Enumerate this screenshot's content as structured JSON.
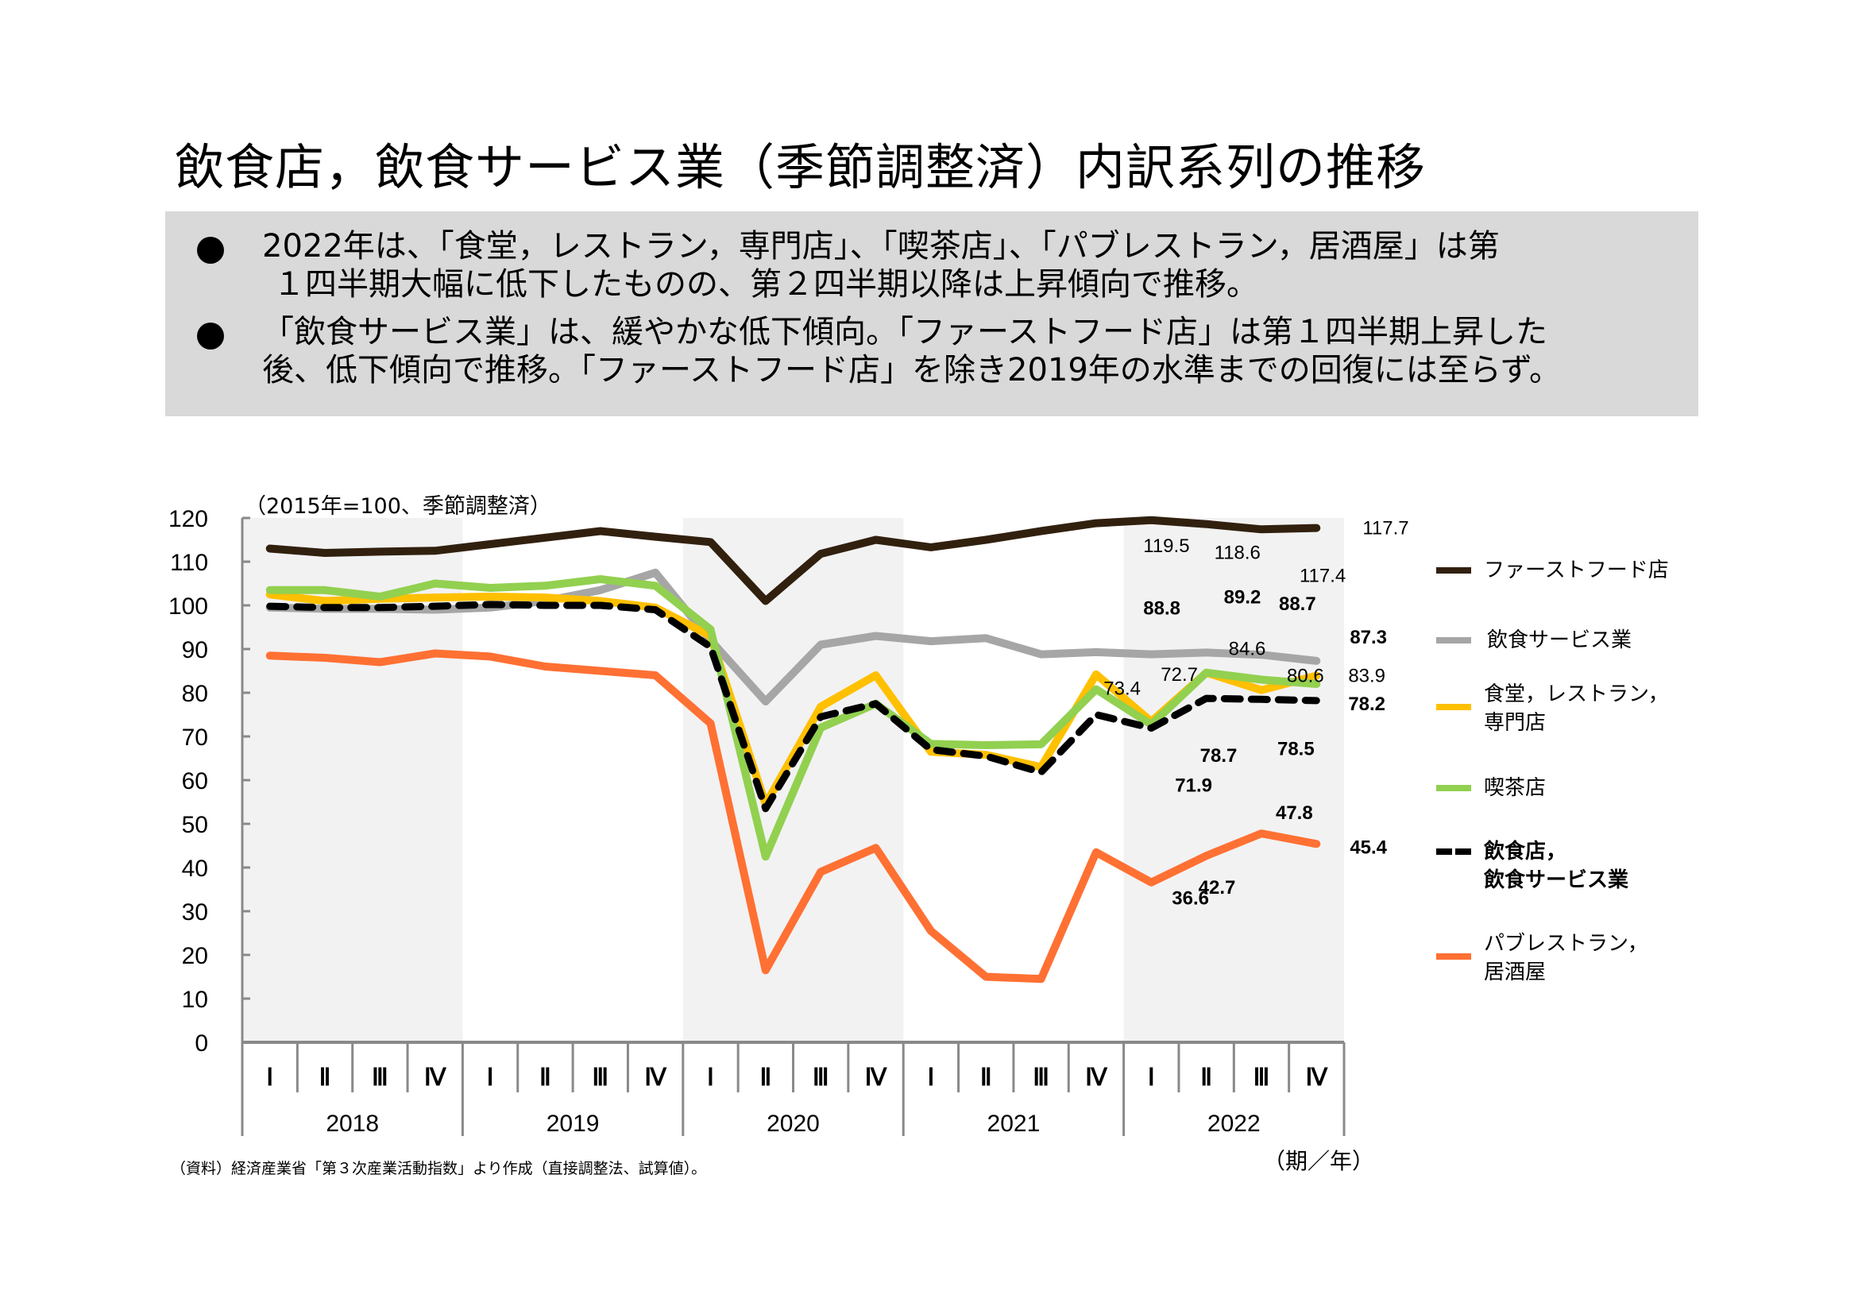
{
  "title": "飲食店，飲食サービス業（季節調整済）内訳系列の推移",
  "summary": {
    "bullets": [
      {
        "line1": "2022年は、「食堂，レストラン，専門店」、「喫茶店」、「パブレストラン，居酒屋」は第",
        "line2": "１四半期大幅に低下したものの、第２四半期以降は上昇傾向で推移。"
      },
      {
        "line1": "「飲食サービス業」は、緩やかな低下傾向。「ファーストフード店」は第１四半期上昇した",
        "line2": "後、低下傾向で推移。「ファーストフード店」を除き2019年の水準までの回復には至らず。"
      }
    ],
    "background_color": "#d9d9d9"
  },
  "footnote": "（資料）経済産業省「第３次産業活動指数」より作成（直接調整法、試算値）。",
  "x_unit_label": "（期／年）",
  "chart_data": {
    "type": "line",
    "title": "",
    "ylabel": "（2015年=100、季節調整済）",
    "xlabel": "（期／年）",
    "ylim": [
      0,
      120
    ],
    "yticks": [
      0,
      10,
      20,
      30,
      40,
      50,
      60,
      70,
      80,
      90,
      100,
      110,
      120
    ],
    "years": [
      "2018",
      "2019",
      "2020",
      "2021",
      "2022"
    ],
    "quarters": [
      "Ⅰ",
      "Ⅱ",
      "Ⅲ",
      "Ⅳ"
    ],
    "shaded_years": [
      "2018",
      "2020",
      "2022"
    ],
    "grid": false,
    "legend_position": "right",
    "series": [
      {
        "name": "ファーストフード店",
        "color": "#32200f",
        "dashed": false,
        "values": [
          113.0,
          112.0,
          112.3,
          112.5,
          114.0,
          115.5,
          117.0,
          115.7,
          114.5,
          101.0,
          111.8,
          115.0,
          113.3,
          115.0,
          117.0,
          118.8,
          119.5,
          118.6,
          117.4,
          117.7
        ],
        "labels": {
          "16": "119.5",
          "17": "118.6",
          "18": "117.4",
          "19": "117.7"
        }
      },
      {
        "name": "飲食サービス業",
        "color": "#a6a6a6",
        "dashed": false,
        "values": [
          99.5,
          99.2,
          99.2,
          99.0,
          99.5,
          101.0,
          103.5,
          107.5,
          92.0,
          78.0,
          91.0,
          93.0,
          91.8,
          92.5,
          88.8,
          89.3,
          88.8,
          89.2,
          88.7,
          87.3
        ],
        "labels": {
          "16": "88.8",
          "17": "89.2",
          "18": "88.7",
          "19": "87.3"
        }
      },
      {
        "name": "食堂，レストラン，専門店",
        "color": "#ffc000",
        "dashed": false,
        "values": [
          102.5,
          101.0,
          101.5,
          101.8,
          102.0,
          101.8,
          101.0,
          99.5,
          93.0,
          54.5,
          76.8,
          84.0,
          66.5,
          65.8,
          63.0,
          84.2,
          73.4,
          84.6,
          80.6,
          83.9
        ],
        "labels": {
          "16": "73.4",
          "17": "84.6",
          "18": "80.6",
          "19": "83.9"
        }
      },
      {
        "name": "喫茶店",
        "color": "#92d050",
        "dashed": false,
        "values": [
          103.5,
          103.5,
          102.0,
          105.0,
          104.0,
          104.5,
          106.0,
          104.5,
          94.5,
          42.5,
          72.0,
          77.5,
          68.3,
          68.0,
          68.2,
          80.8,
          72.7,
          84.6,
          83.0,
          82.0
        ],
        "labels": {
          "16": "72.7"
        }
      },
      {
        "name": "飲食店，飲食サービス業",
        "color": "#000000",
        "dashed": true,
        "values": [
          99.8,
          99.5,
          99.5,
          99.8,
          100.2,
          100.0,
          100.0,
          99.0,
          90.5,
          53.5,
          74.5,
          77.5,
          67.0,
          65.5,
          61.8,
          75.0,
          71.9,
          78.7,
          78.5,
          78.2
        ],
        "labels": {
          "16": "71.9",
          "17": "78.7",
          "18": "78.5",
          "19": "78.2"
        }
      },
      {
        "name": "パブレストラン，居酒屋",
        "color": "#ff7033",
        "dashed": false,
        "values": [
          88.5,
          88.0,
          87.0,
          89.0,
          88.3,
          86.0,
          85.0,
          84.0,
          73.0,
          16.5,
          39.0,
          44.5,
          25.5,
          15.0,
          14.5,
          43.5,
          36.6,
          42.7,
          47.8,
          45.4
        ],
        "labels": {
          "16": "36.6",
          "17": "42.7",
          "18": "47.8",
          "19": "45.4"
        }
      }
    ]
  },
  "legend": {
    "items": [
      {
        "line1": "ファーストフード店",
        "line2": ""
      },
      {
        "line1": "飲食サービス業",
        "line2": ""
      },
      {
        "line1": "食堂，レストラン，",
        "line2": "専門店"
      },
      {
        "line1": "喫茶店",
        "line2": ""
      },
      {
        "line1": "飲食店，",
        "line2": "飲食サービス業"
      },
      {
        "line1": "パブレストラン，",
        "line2": "居酒屋"
      }
    ]
  }
}
